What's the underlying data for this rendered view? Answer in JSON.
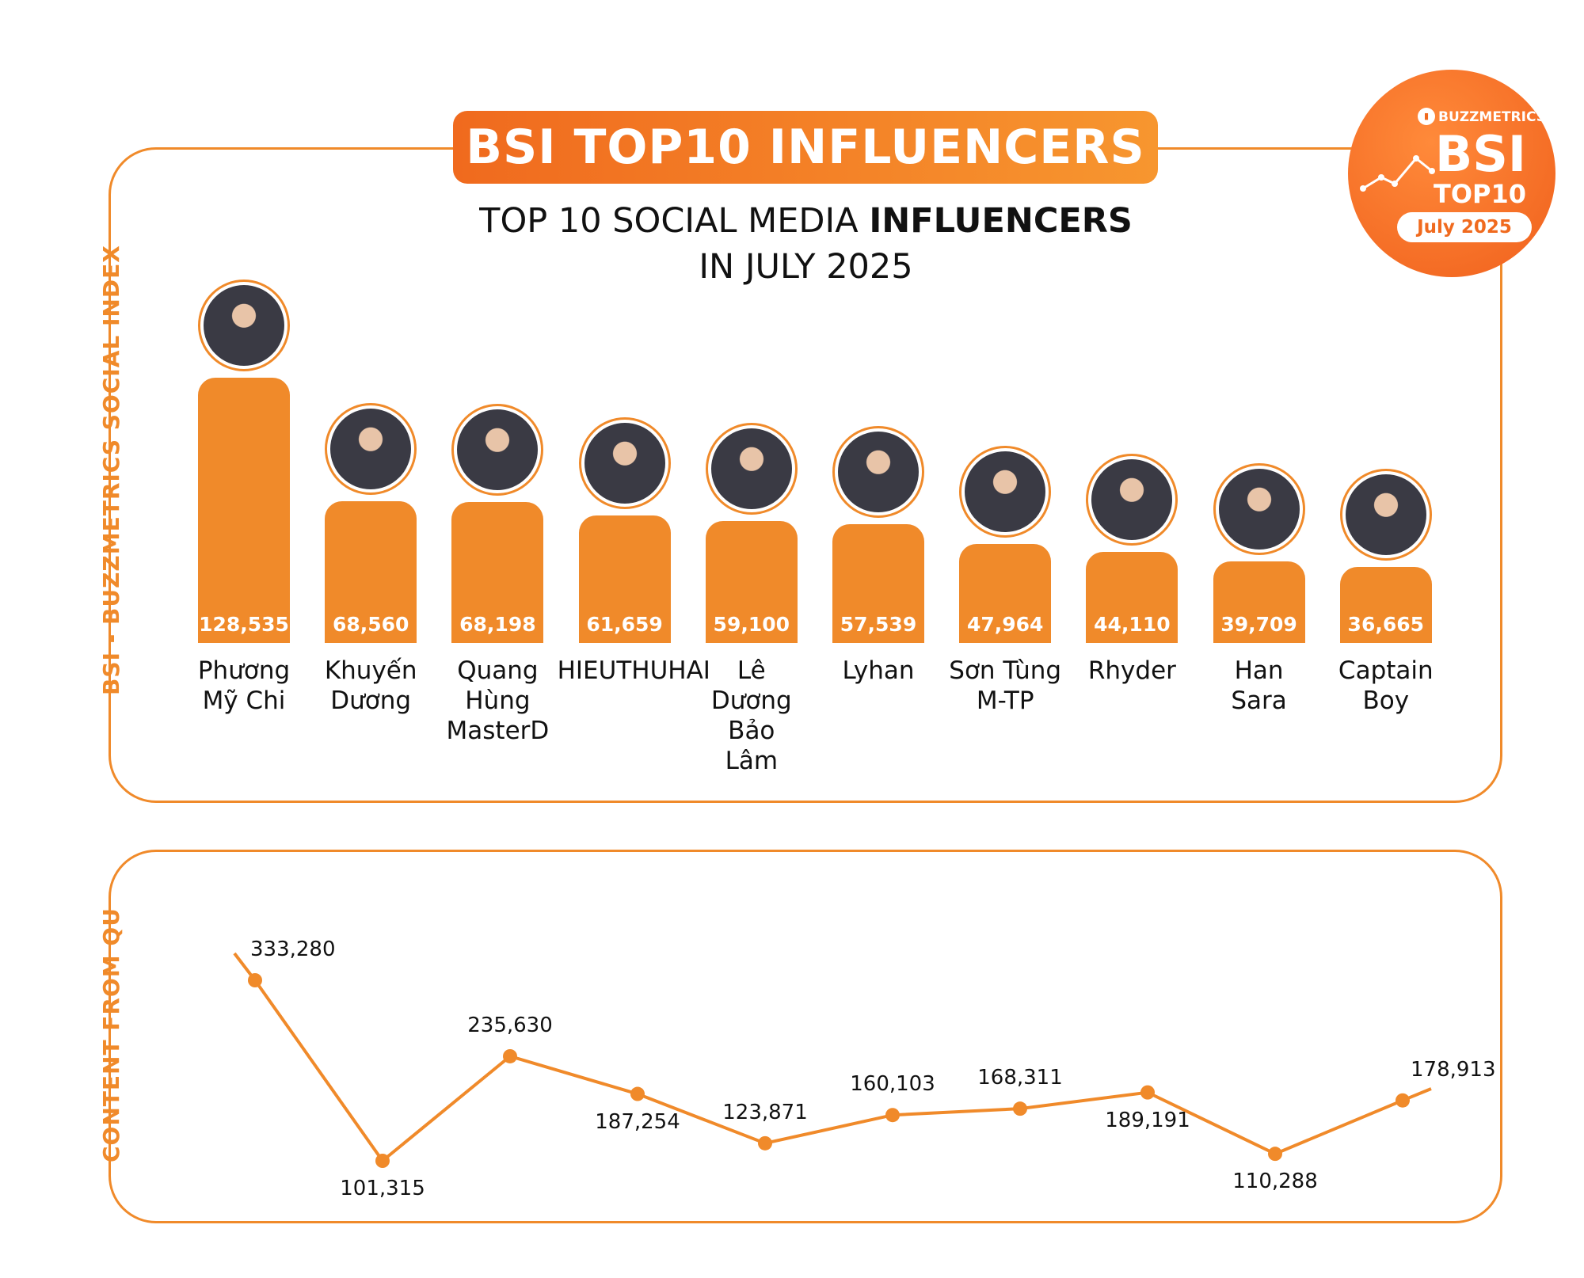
{
  "banner": "BSI TOP10 INFLUENCERS",
  "subtitle": {
    "line1_a": "TOP 10 SOCIAL MEDIA ",
    "line1_b": "INFLUENCERS",
    "line2": "IN JULY 2025"
  },
  "badge": {
    "brand": "BUZZMETRICS",
    "big": "BSI",
    "small": "TOP10",
    "month": "July 2025"
  },
  "vlabels": {
    "top": "BSI - BUZZMETRICS SOCIAL INDEX",
    "bottom": "CONTENT FROM QU"
  },
  "colors": {
    "accent": "#f08a2a",
    "accent_dark": "#f06a1e"
  },
  "chart_data": [
    {
      "type": "bar",
      "categories": [
        "Phương Mỹ Chi",
        "Khuyến Dương",
        "Quang Hùng MasterD",
        "HIEUTHUHAI",
        "Lê Dương Bảo Lâm",
        "Lyhan",
        "Sơn Tùng M-TP",
        "Rhyder",
        "Han Sara",
        "Captain Boy"
      ],
      "category_lines": [
        [
          "Phương",
          "Mỹ Chi"
        ],
        [
          "Khuyến",
          "Dương"
        ],
        [
          "Quang",
          "Hùng",
          "MasterD"
        ],
        [
          "HIEUTHUHAI"
        ],
        [
          "Lê",
          "Dương",
          "Bảo",
          "Lâm"
        ],
        [
          "Lyhan"
        ],
        [
          "Sơn Tùng",
          "M-TP"
        ],
        [
          "Rhyder"
        ],
        [
          "Han",
          "Sara"
        ],
        [
          "Captain",
          "Boy"
        ]
      ],
      "values": [
        128535,
        68560,
        68198,
        61659,
        59100,
        57539,
        47964,
        44110,
        39709,
        36665
      ],
      "value_labels": [
        "128,535",
        "68,560",
        "68,198",
        "61,659",
        "59,100",
        "57,539",
        "47,964",
        "44,110",
        "39,709",
        "36,665"
      ],
      "ylabel": "BSI - BUZZMETRICS SOCIAL INDEX"
    },
    {
      "type": "line",
      "categories": [
        "Phương Mỹ Chi",
        "Khuyến Dương",
        "Quang Hùng MasterD",
        "HIEUTHUHAI",
        "Lê Dương Bảo Lâm",
        "Lyhan",
        "Sơn Tùng M-TP",
        "Rhyder",
        "Han Sara",
        "Captain Boy"
      ],
      "values": [
        333280,
        101315,
        235630,
        187254,
        123871,
        160103,
        168311,
        189191,
        110288,
        178913
      ],
      "value_labels": [
        "333,280",
        "101,315",
        "235,630",
        "187,254",
        "123,871",
        "160,103",
        "168,311",
        "189,191",
        "110,288",
        "178,913"
      ],
      "ylabel": "CONTENT FROM QU"
    }
  ]
}
